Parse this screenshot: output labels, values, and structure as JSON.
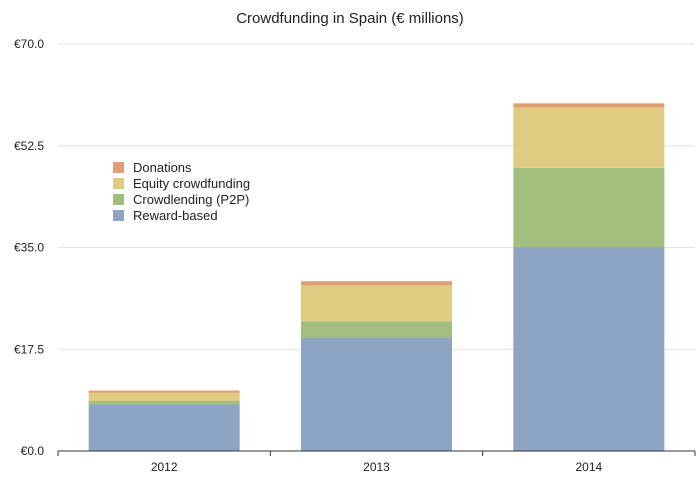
{
  "chart_data": {
    "type": "bar",
    "stacked": true,
    "title": "Crowdfunding in Spain (€ millions)",
    "xlabel": "",
    "ylabel": "",
    "categories": [
      "2012",
      "2013",
      "2014"
    ],
    "series": [
      {
        "name": "Reward-based",
        "values": [
          8.0,
          19.5,
          35.0
        ],
        "color": "#8da5c2"
      },
      {
        "name": "Crowdlending (P2P)",
        "values": [
          0.6,
          2.8,
          13.7
        ],
        "color": "#a3bd7e"
      },
      {
        "name": "Equity crowdfunding",
        "values": [
          1.4,
          6.2,
          10.4
        ],
        "color": "#dfcc80"
      },
      {
        "name": "Donations",
        "values": [
          0.4,
          0.7,
          0.7
        ],
        "color": "#e29d74"
      }
    ],
    "ylim": [
      0,
      70
    ],
    "yticks": [
      "€0.0",
      "€17.5",
      "€35.0",
      "€52.5",
      "€70.0"
    ],
    "ytick_values": [
      0,
      17.5,
      35,
      52.5,
      70
    ],
    "grid": true,
    "legend_placement": "upper-left",
    "legend_order": [
      "Donations",
      "Equity crowdfunding",
      "Crowdlending (P2P)",
      "Reward-based"
    ]
  }
}
